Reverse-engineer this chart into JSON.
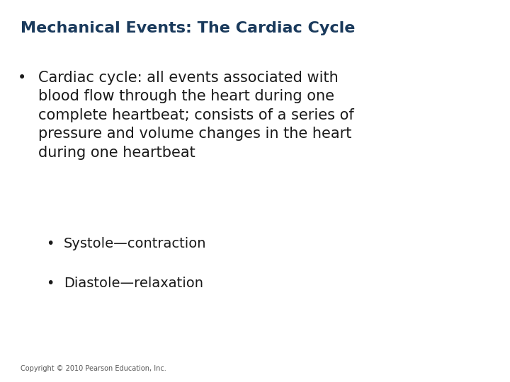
{
  "title": "Mechanical Events: The Cardiac Cycle",
  "title_color": "#1a3a5c",
  "title_fontsize": 16,
  "background_color": "#ffffff",
  "text_color": "#1a1a1a",
  "bullet1_line1": "Cardiac cycle: all events associated with",
  "bullet1_line2": "blood flow through the heart during one",
  "bullet1_line3": "complete heartbeat; consists of a series of",
  "bullet1_line4": "pressure and volume changes in the heart",
  "bullet1_line5": "during one heartbeat",
  "sub_bullet1": "Systole—contraction",
  "sub_bullet2": "Diastole—relaxation",
  "copyright": "Copyright © 2010 Pearson Education, Inc.",
  "title_fontsize_val": 16,
  "body_fontsize": 15,
  "sub_fontsize": 14,
  "copyright_fontsize": 7
}
